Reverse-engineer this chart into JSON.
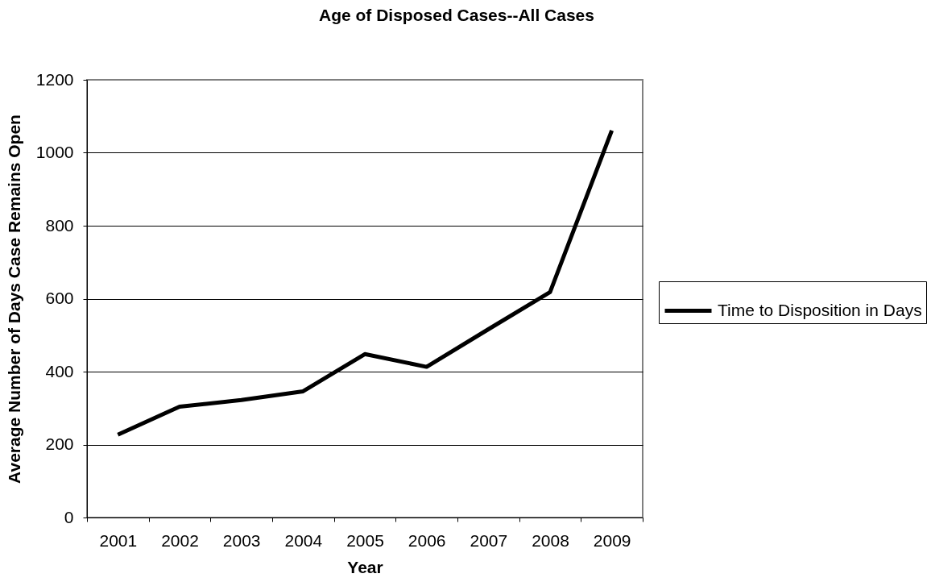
{
  "chart_data": {
    "type": "line",
    "title": "Age of Disposed Cases--All Cases",
    "xlabel": "Year",
    "ylabel": "Average Number of Days Case Remains Open",
    "categories": [
      "2001",
      "2002",
      "2003",
      "2004",
      "2005",
      "2006",
      "2007",
      "2008",
      "2009"
    ],
    "series": [
      {
        "name": "Time to Disposition in Days",
        "color": "#000000",
        "values": [
          227,
          304,
          322,
          346,
          448,
          413,
          516,
          618,
          1061
        ]
      }
    ],
    "ylim": [
      0,
      1200
    ],
    "yticks": [
      0,
      200,
      400,
      600,
      800,
      1000,
      1200
    ],
    "grid": "y",
    "legend": "right",
    "line_style": "solid"
  }
}
